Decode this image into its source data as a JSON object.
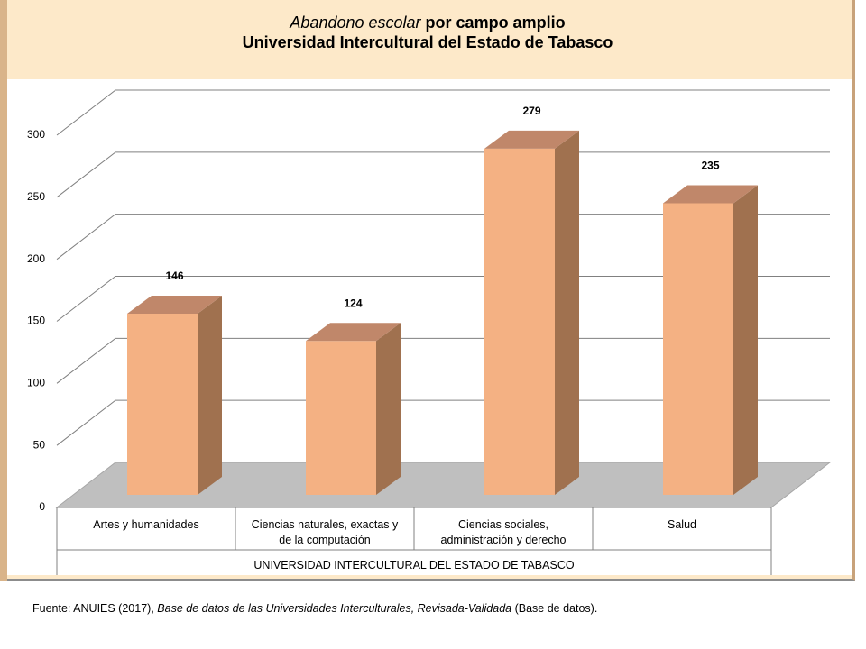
{
  "chart_data": {
    "type": "bar3d",
    "title_italic": "Abandono escolar",
    "title": "por campo amplio",
    "subtitle": "Universidad Intercultural del Estado de Tabasco",
    "categories": [
      "Artes y humanidades",
      "Ciencias naturales, exactas y\nde la computación",
      "Ciencias sociales,\nadministración y derecho",
      "Salud"
    ],
    "group_label": "UNIVERSIDAD INTERCULTURAL DEL ESTADO DE TABASCO",
    "values": [
      146,
      124,
      279,
      235
    ],
    "color": "#f4b183",
    "ylim": [
      0,
      300
    ],
    "yticks": [
      0,
      50,
      100,
      150,
      200,
      250,
      300
    ],
    "grid": true
  },
  "source": {
    "prefix": "Fuente: ANUIES (2017),",
    "italic": "Base de datos de las Universidades Interculturales, Revisada-Validada",
    "suffix": "(Base de datos)."
  }
}
